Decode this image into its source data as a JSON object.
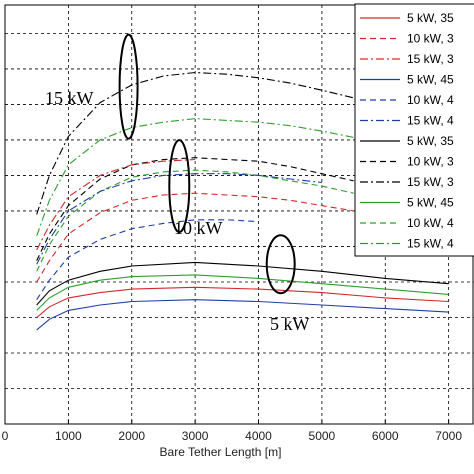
{
  "chart_data": {
    "type": "line",
    "xlabel": "Bare Tether Length [m]",
    "ylabel": "",
    "title": "",
    "xlim": [
      0,
      7400
    ],
    "ylim": [
      0,
      11.8
    ],
    "xticks": [
      "0",
      "1000",
      "2000",
      "3000",
      "4000",
      "5000",
      "6000",
      "7000"
    ],
    "grid": true,
    "legend_position": "top-right",
    "annotations": [
      {
        "text": "15 kW",
        "x": 1950,
        "y": 9.5
      },
      {
        "text": "10 kW",
        "x": 2750,
        "y": 6.7
      },
      {
        "text": "5 kW",
        "x": 4350,
        "y": 4.5
      }
    ],
    "series": [
      {
        "name": "5 kW, 35",
        "color": "#000000",
        "dash": "solid",
        "x": [
          500,
          700,
          1000,
          1500,
          2000,
          3000,
          4000,
          5000,
          6000,
          7000
        ],
        "y": [
          3.35,
          3.75,
          4.05,
          4.3,
          4.45,
          4.55,
          4.45,
          4.3,
          4.1,
          3.95
        ]
      },
      {
        "name": "10 kW, 3",
        "color": "#000000",
        "dash": "dashed",
        "x": [
          500,
          700,
          1000,
          1500,
          2000,
          2500,
          3000,
          3500,
          4000,
          4500,
          5000,
          5500
        ],
        "y": [
          4.6,
          5.35,
          6.15,
          6.9,
          7.3,
          7.45,
          7.5,
          7.45,
          7.4,
          7.25,
          7.05,
          6.85
        ]
      },
      {
        "name": "15 kW, 3",
        "color": "#000000",
        "dash": "dashdot",
        "x": [
          500,
          700,
          1000,
          1500,
          2000,
          2500,
          3000,
          3500,
          4000,
          4500,
          5000,
          5700
        ],
        "y": [
          5.9,
          7.0,
          8.1,
          9.05,
          9.55,
          9.8,
          9.9,
          9.85,
          9.75,
          9.6,
          9.4,
          9.1
        ]
      },
      {
        "name": "5 kW, 45",
        "color": "#2ca02c",
        "dash": "solid",
        "x": [
          500,
          700,
          1000,
          1500,
          2000,
          3000,
          4000,
          5000,
          6000,
          7000
        ],
        "y": [
          3.2,
          3.55,
          3.85,
          4.05,
          4.15,
          4.2,
          4.1,
          3.95,
          3.8,
          3.65
        ]
      },
      {
        "name": "10 kW, 4",
        "color": "#2ca02c",
        "dash": "dashed",
        "x": [
          500,
          700,
          1000,
          1500,
          2000,
          2500,
          3000,
          3500,
          4000,
          4500,
          5000,
          5500
        ],
        "y": [
          4.3,
          5.05,
          5.85,
          6.55,
          6.95,
          7.1,
          7.15,
          7.1,
          7.0,
          6.85,
          6.7,
          6.5
        ]
      },
      {
        "name": "15 kW, 4",
        "color": "#2ca02c",
        "dash": "dashdot",
        "x": [
          500,
          700,
          1000,
          1500,
          2000,
          2500,
          3000,
          3500,
          4000,
          4500,
          5000,
          5700
        ],
        "y": [
          5.3,
          6.3,
          7.3,
          8.0,
          8.35,
          8.5,
          8.6,
          8.55,
          8.5,
          8.4,
          8.25,
          8.0
        ]
      },
      {
        "name": "5 kW, 35",
        "color": "#d62728",
        "dash": "solid",
        "x": [
          500,
          700,
          1000,
          1500,
          2000,
          3000,
          4000,
          5000,
          6000,
          7000
        ],
        "y": [
          3.0,
          3.3,
          3.55,
          3.7,
          3.8,
          3.85,
          3.8,
          3.7,
          3.55,
          3.45
        ]
      },
      {
        "name": "10 kW, 3",
        "color": "#d62728",
        "dash": "dashed",
        "x": [
          500,
          700,
          1000,
          1500,
          2000,
          2500,
          3000,
          3500,
          4000,
          4500,
          5000,
          5500
        ],
        "y": [
          4.0,
          4.6,
          5.35,
          5.95,
          6.3,
          6.45,
          6.5,
          6.45,
          6.4,
          6.3,
          6.15,
          6.0
        ]
      },
      {
        "name": "15 kW, 3",
        "color": "#d62728",
        "dash": "dashdot",
        "x": [
          500,
          700,
          1000,
          1500,
          2000,
          2500,
          3000
        ],
        "y": [
          4.9,
          5.6,
          6.4,
          7.0,
          7.3,
          7.4,
          7.45
        ]
      },
      {
        "name": "5 kW, 45",
        "color": "#1f3fa8",
        "dash": "solid",
        "x": [
          500,
          700,
          1000,
          1500,
          2000,
          3000,
          4000,
          5000,
          6000,
          7000
        ],
        "y": [
          2.65,
          2.95,
          3.2,
          3.35,
          3.45,
          3.5,
          3.45,
          3.35,
          3.25,
          3.15
        ]
      },
      {
        "name": "10 kW, 4",
        "color": "#1f3fa8",
        "dash": "dashed",
        "x": [
          500,
          700,
          1000,
          1500,
          2000,
          2500,
          3000,
          3500,
          4000
        ],
        "y": [
          3.5,
          4.05,
          4.7,
          5.2,
          5.5,
          5.65,
          5.75,
          5.75,
          5.7
        ]
      },
      {
        "name": "15 kW, 4",
        "color": "#1f3fa8",
        "dash": "dashdot",
        "x": [
          500,
          700,
          1000,
          1500,
          2000,
          2500,
          3000,
          3500,
          4000,
          4500,
          5000
        ],
        "y": [
          4.5,
          5.2,
          6.0,
          6.55,
          6.85,
          7.0,
          7.05,
          7.05,
          7.0,
          6.9,
          6.8
        ]
      }
    ],
    "legend_entries": [
      {
        "label": "5 kW, 35",
        "color": "#d62728",
        "dash": "solid"
      },
      {
        "label": "10 kW, 3",
        "color": "#d62728",
        "dash": "dashed"
      },
      {
        "label": "15 kW, 3",
        "color": "#d62728",
        "dash": "dashdot"
      },
      {
        "label": "5 kW, 45",
        "color": "#1f3fa8",
        "dash": "solid"
      },
      {
        "label": "10 kW, 4",
        "color": "#1f3fa8",
        "dash": "dashed"
      },
      {
        "label": "15 kW, 4",
        "color": "#1f3fa8",
        "dash": "dashdot"
      },
      {
        "label": "5 kW, 35",
        "color": "#000000",
        "dash": "solid"
      },
      {
        "label": "10 kW, 3",
        "color": "#000000",
        "dash": "dashed"
      },
      {
        "label": "15 kW, 3",
        "color": "#000000",
        "dash": "dashdot"
      },
      {
        "label": "5 kW, 45",
        "color": "#2ca02c",
        "dash": "solid"
      },
      {
        "label": "10 kW, 4",
        "color": "#2ca02c",
        "dash": "dashed"
      },
      {
        "label": "15 kW, 4",
        "color": "#2ca02c",
        "dash": "dashdot"
      }
    ]
  }
}
